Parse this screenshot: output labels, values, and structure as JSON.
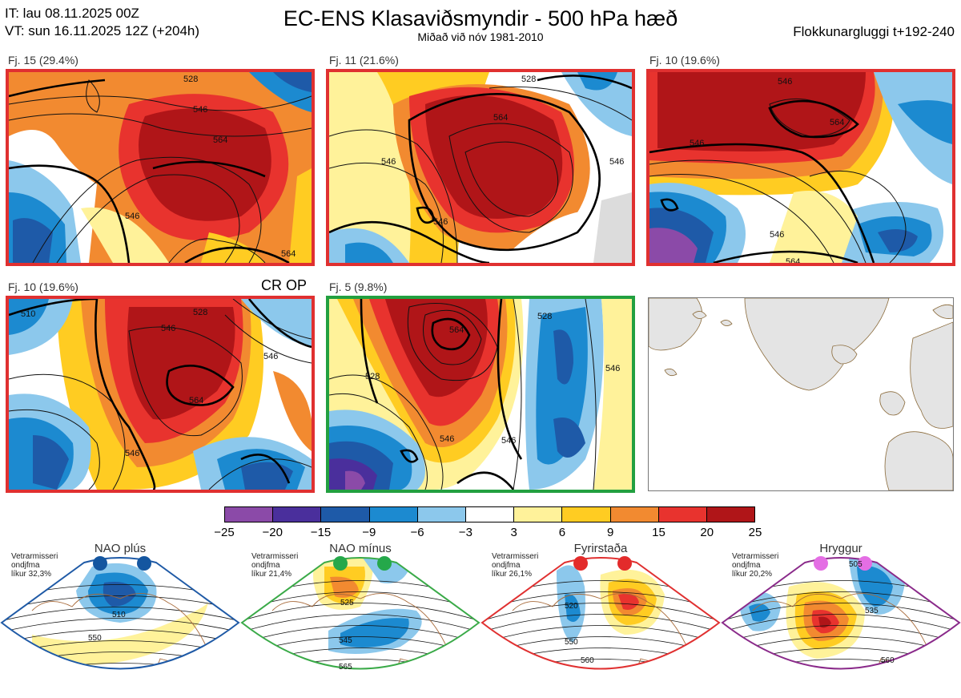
{
  "header": {
    "it_line": "IT: lau 08.11.2025 00Z",
    "vt_line": "VT: sun 16.11.2025 12Z  (+204h)",
    "title": "EC-ENS Klasaviðsmyndir - 500 hPa hæð",
    "subtitle": "Miðað við nóv 1981-2010",
    "window": "Flokkunargluggi t+192-240"
  },
  "panels": [
    {
      "label": "Fj. 15 (29.4%)",
      "border": "#e03030",
      "contours": [
        "546",
        "546",
        "564",
        "564",
        "528"
      ]
    },
    {
      "label": "Fj. 11 (21.6%)",
      "border": "#e03030",
      "contours": [
        "546",
        "564",
        "546",
        "546",
        "528"
      ]
    },
    {
      "label": "Fj. 10 (19.6%)",
      "border": "#e03030",
      "contours": [
        "546",
        "564",
        "546",
        "546",
        "564"
      ]
    },
    {
      "label": "Fj. 10 (19.6%)",
      "border": "#e03030",
      "overlay": "CR OP",
      "contours": [
        "510",
        "528",
        "546",
        "546",
        "564",
        "546"
      ]
    },
    {
      "label": "Fj. 5 (9.8%)",
      "border": "#22a040",
      "contours": [
        "528",
        "564",
        "528",
        "546",
        "546",
        "546"
      ]
    }
  ],
  "colorbar": {
    "ticks": [
      "−25",
      "−20",
      "−15",
      "−9",
      "−6",
      "−3",
      "3",
      "6",
      "9",
      "15",
      "20",
      "25"
    ],
    "colors": [
      "#8b4aa8",
      "#4a2f9c",
      "#1e5aa8",
      "#1c8ad0",
      "#8cc8ec",
      "#ffffff",
      "#fff29a",
      "#ffcc22",
      "#f28a30",
      "#e8332e",
      "#b01518"
    ]
  },
  "regimes": [
    {
      "name": "NAO plús",
      "meta": [
        "Vetrarmisseri",
        "ondjfma",
        "líkur 32,3%"
      ],
      "color": "#1f5aa6",
      "dot": "#1456a0",
      "contours": [
        "510",
        "550"
      ]
    },
    {
      "name": "NAO mínus",
      "meta": [
        "Vetrarmisseri",
        "ondjfma",
        "líkur 21,4%"
      ],
      "color": "#3aaa48",
      "dot": "#25a84a",
      "contours": [
        "525",
        "545",
        "565"
      ]
    },
    {
      "name": "Fyrirstaða",
      "meta": [
        "Vetrarmisseri",
        "ondjfma",
        "líkur 26,1%"
      ],
      "color": "#e03030",
      "dot": "#e32b2b",
      "contours": [
        "520",
        "550",
        "560"
      ]
    },
    {
      "name": "Hryggur",
      "meta": [
        "Vetrarmisseri",
        "ondjfma",
        "líkur 20,2%"
      ],
      "color": "#8a2a8a",
      "dot": "#e46ee4",
      "contours": [
        "505",
        "535",
        "560"
      ]
    }
  ]
}
